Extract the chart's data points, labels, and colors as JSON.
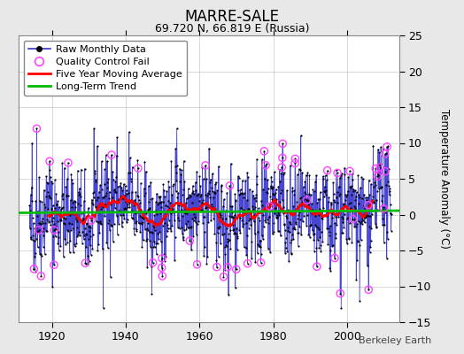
{
  "title": "MARRE-SALE",
  "subtitle": "69.720 N, 66.819 E (Russia)",
  "ylabel": "Temperature Anomaly (°C)",
  "credit": "Berkeley Earth",
  "xlim": [
    1911,
    2014
  ],
  "ylim": [
    -15,
    25
  ],
  "yticks": [
    -15,
    -10,
    -5,
    0,
    5,
    10,
    15,
    20,
    25
  ],
  "xticks": [
    1920,
    1940,
    1960,
    1980,
    2000
  ],
  "bg_color": "#e8e8e8",
  "plot_bg_color": "#ffffff",
  "raw_line_color": "#3333cc",
  "raw_dot_color": "#000000",
  "qc_fail_color": "#ff44ff",
  "moving_avg_color": "#ff0000",
  "trend_color": "#00bb00",
  "seed": 42,
  "n_years": 98,
  "start_year": 1914
}
